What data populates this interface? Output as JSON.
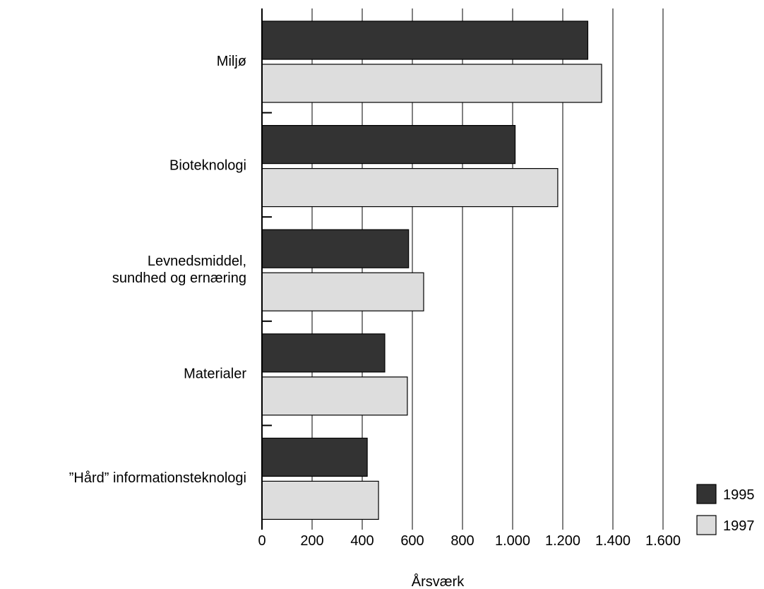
{
  "chart_data": {
    "type": "bar",
    "orientation": "horizontal",
    "title": "",
    "xlabel": "Årsværk",
    "ylabel": "",
    "xlim": [
      0,
      1600
    ],
    "grid": true,
    "legend_placement": "bottom-right",
    "categories": [
      "Miljø",
      "Bioteknologi",
      "Levnedsmiddel,\nsundhed og ernæring",
      "Materialer",
      "”Hård” informationsteknologi"
    ],
    "series": [
      {
        "name": "1995",
        "color": "#333333",
        "values": [
          1300,
          1010,
          585,
          490,
          420
        ]
      },
      {
        "name": "1997",
        "color": "#dddddd",
        "values": [
          1355,
          1180,
          645,
          580,
          465
        ]
      }
    ],
    "xticks": [
      0,
      200,
      400,
      600,
      800,
      1000,
      1200,
      1400,
      1600
    ],
    "xtick_labels": [
      "0",
      "200",
      "400",
      "600",
      "800",
      "1.000",
      "1.200",
      "1.400",
      "1.600"
    ]
  }
}
